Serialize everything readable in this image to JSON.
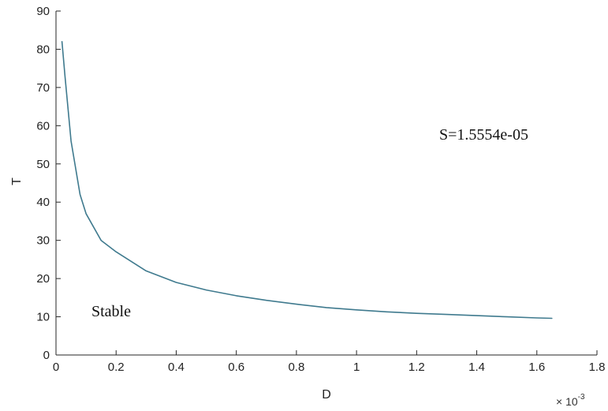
{
  "chart_data": {
    "type": "line",
    "xlabel": "D",
    "ylabel": "T",
    "x_exponent_base": "× 10",
    "x_exponent_power": "-3",
    "xlim": [
      0,
      1.8
    ],
    "ylim": [
      0,
      90
    ],
    "x_ticks": [
      "0",
      "0.2",
      "0.4",
      "0.6",
      "0.8",
      "1",
      "1.2",
      "1.4",
      "1.6",
      "1.8"
    ],
    "y_ticks": [
      "0",
      "10",
      "20",
      "30",
      "40",
      "50",
      "60",
      "70",
      "80",
      "90"
    ],
    "grid": false,
    "series": [
      {
        "color": "#3f7a8e",
        "x": [
          0.02,
          0.03,
          0.05,
          0.08,
          0.1,
          0.15,
          0.2,
          0.3,
          0.4,
          0.5,
          0.6,
          0.7,
          0.8,
          0.9,
          1.0,
          1.1,
          1.2,
          1.3,
          1.4,
          1.5,
          1.6,
          1.65
        ],
        "y": [
          82,
          73,
          56,
          42,
          37,
          30,
          27,
          22,
          19,
          17,
          15.5,
          14.3,
          13.3,
          12.4,
          11.8,
          11.3,
          10.9,
          10.6,
          10.3,
          10.0,
          9.7,
          9.6
        ]
      }
    ],
    "annotations": [
      {
        "text": "S=1.5554e-05"
      },
      {
        "text": "Stable"
      }
    ]
  }
}
